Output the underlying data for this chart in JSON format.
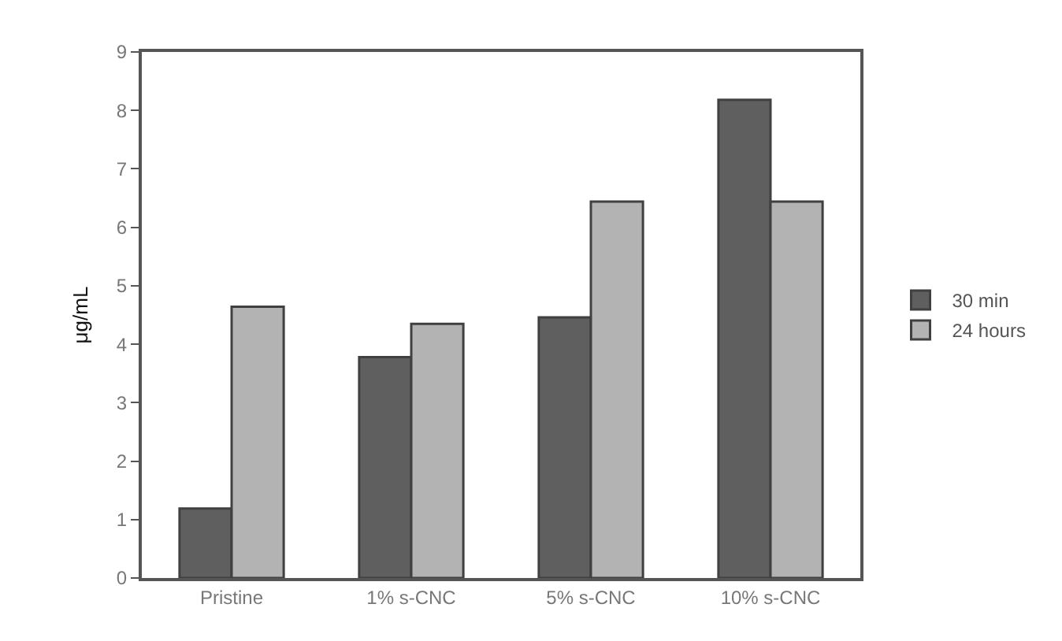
{
  "chart_data": {
    "type": "bar",
    "ylabel": "μg/mL",
    "categories": [
      "Pristine",
      "1% s-CNC",
      "5% s-CNC",
      "10% s-CNC"
    ],
    "series": [
      {
        "name": "30 min",
        "color": "#5f5f5f",
        "values": [
          1.19,
          3.78,
          4.46,
          8.18
        ]
      },
      {
        "name": "24 hours",
        "color": "#b3b3b3",
        "values": [
          4.64,
          4.35,
          6.44,
          6.44
        ]
      }
    ],
    "ylim": [
      0,
      9
    ],
    "yticks": [
      0,
      1,
      2,
      3,
      4,
      5,
      6,
      7,
      8,
      9
    ],
    "legend": "right"
  }
}
